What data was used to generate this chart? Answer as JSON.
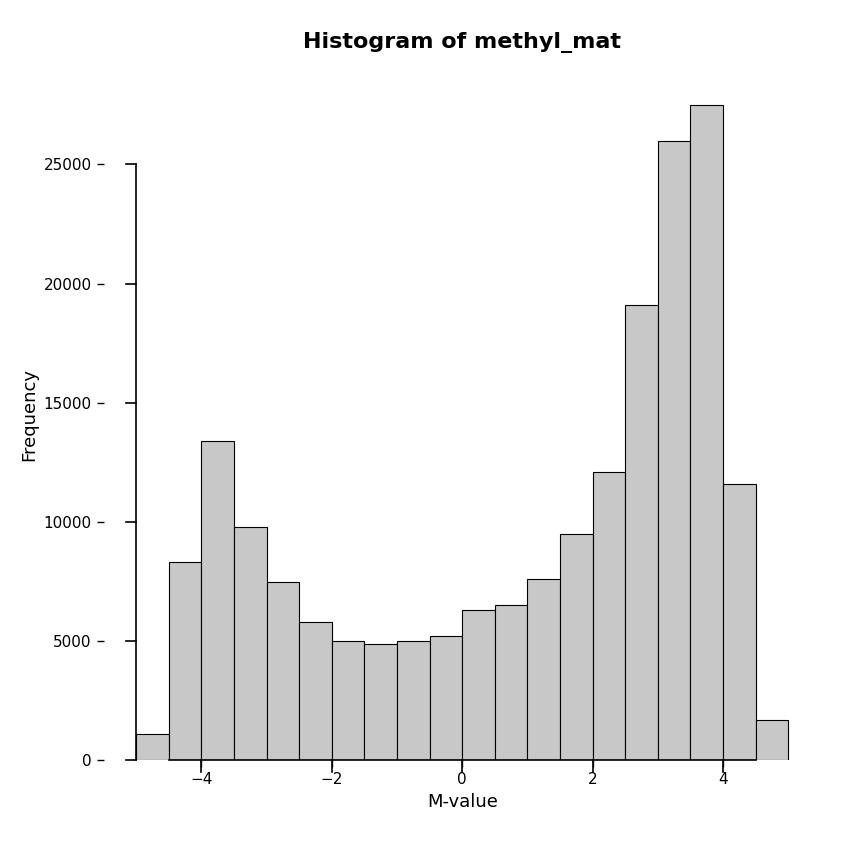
{
  "title": "Histogram of methyl_mat",
  "xlabel": "M-value",
  "ylabel": "Frequency",
  "bar_color": "#c8c8c8",
  "bar_edge_color": "#000000",
  "bar_edge_width": 0.8,
  "ylim": [
    0,
    29000
  ],
  "yticks": [
    0,
    5000,
    10000,
    15000,
    20000,
    25000
  ],
  "xticks": [
    -4,
    -2,
    0,
    2,
    4
  ],
  "xlim": [
    -5.5,
    5.5
  ],
  "bin_width": 0.5,
  "bin_starts": [
    -5.0,
    -4.5,
    -4.0,
    -3.5,
    -3.0,
    -2.5,
    -2.0,
    -1.5,
    -1.0,
    -0.5,
    0.0,
    0.5,
    1.0,
    1.5,
    2.0,
    2.5,
    3.0,
    3.5,
    4.0,
    4.5
  ],
  "counts": [
    1100,
    8300,
    13400,
    9800,
    7500,
    5800,
    5000,
    4900,
    5000,
    5200,
    6300,
    6500,
    7600,
    9500,
    12100,
    19100,
    26000,
    27500,
    11600,
    1700
  ],
  "title_fontsize": 16,
  "axis_label_fontsize": 13,
  "tick_fontsize": 11,
  "background_color": "#ffffff"
}
